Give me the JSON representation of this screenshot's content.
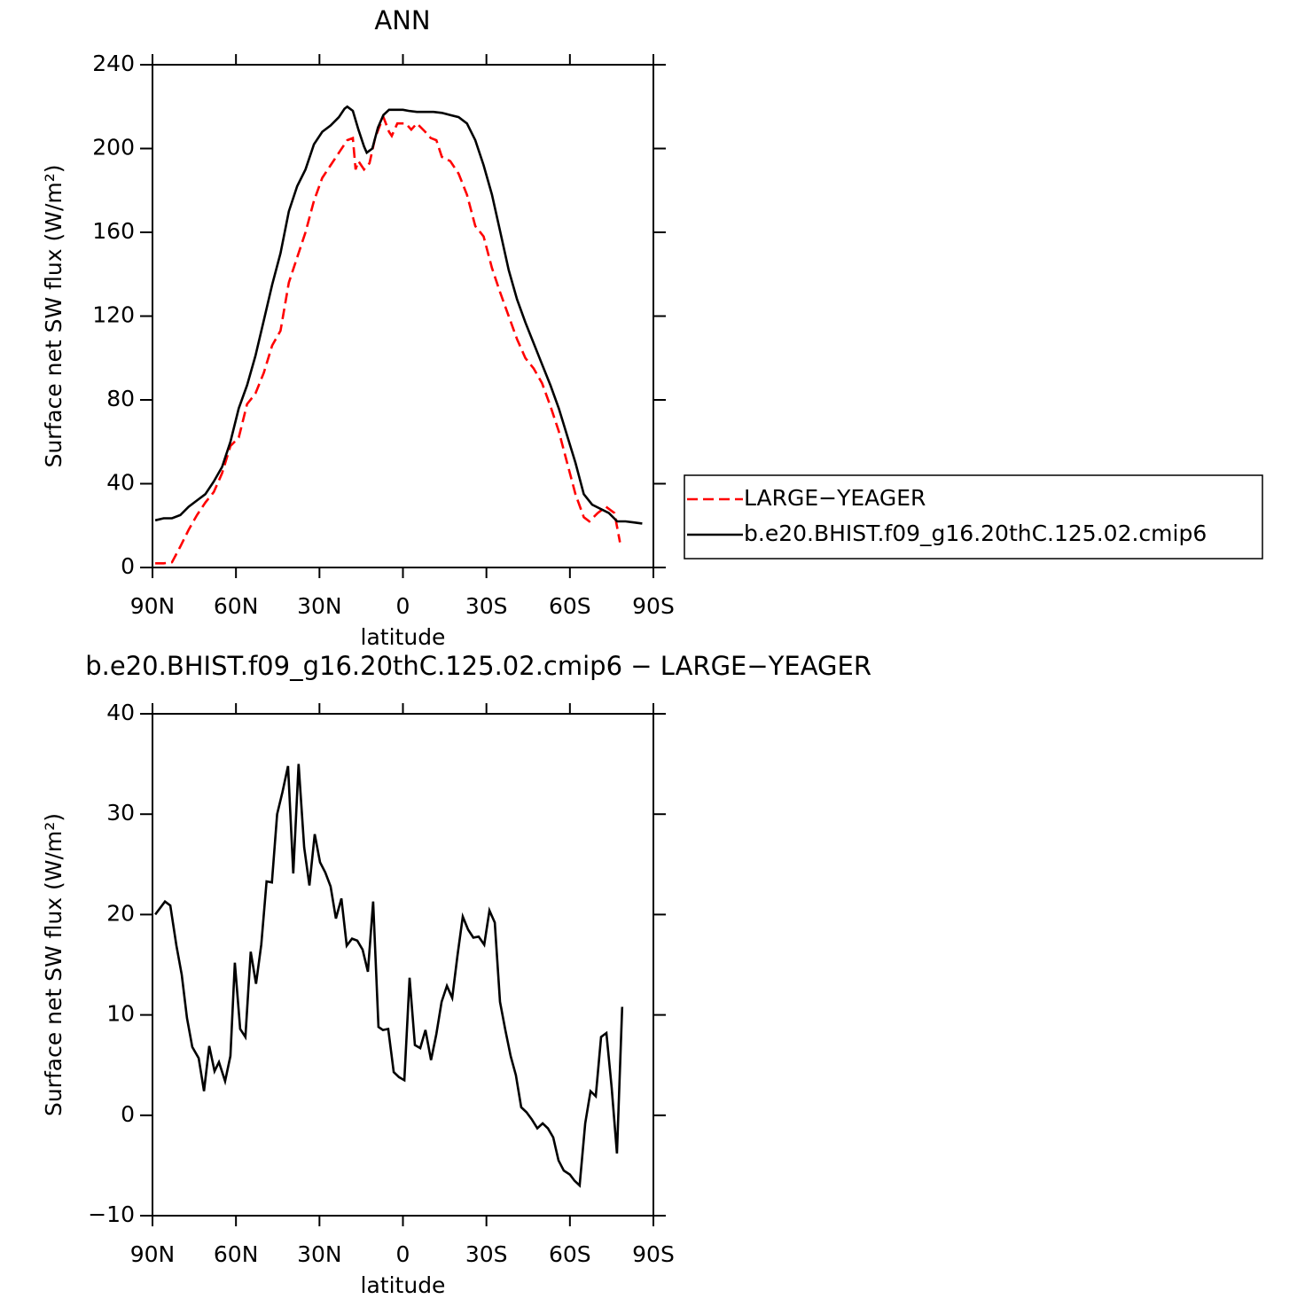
{
  "chart_data": [
    {
      "type": "line",
      "title": "ANN",
      "xlabel": "latitude",
      "ylabel": "Surface net SW flux (W/m²)",
      "xlim": [
        90,
        -90
      ],
      "xticks": [
        {
          "value": 90,
          "label": "90N"
        },
        {
          "value": 60,
          "label": "60N"
        },
        {
          "value": 30,
          "label": "30N"
        },
        0,
        {
          "value": -30,
          "label": "30S"
        },
        {
          "value": -60,
          "label": "60S"
        },
        {
          "value": -90,
          "label": "90S"
        }
      ],
      "ylim": [
        0,
        240
      ],
      "yticks": [
        0,
        40,
        80,
        120,
        160,
        200,
        240
      ],
      "legend_position": "right",
      "series": [
        {
          "name": "LARGE−YEAGER",
          "color": "#ff0000",
          "line_style": "dashed",
          "x": [
            89,
            86,
            83,
            80,
            77,
            74,
            71,
            68,
            65,
            62,
            59,
            56,
            53,
            50,
            47,
            44,
            41,
            38,
            35,
            32,
            29,
            26,
            23,
            20,
            18,
            17,
            16,
            14,
            12,
            10,
            8,
            7,
            5,
            4,
            2,
            -1,
            -3,
            -5,
            -8,
            -10,
            -12,
            -14,
            -17,
            -20,
            -23,
            -26,
            -29,
            -32,
            -35,
            -38,
            -41,
            -44,
            -47,
            -50,
            -53,
            -56,
            -59,
            -62,
            -65,
            -67,
            -70,
            -73,
            -76,
            -78
          ],
          "values": [
            2,
            2,
            2.5,
            10,
            18,
            25,
            31,
            36,
            45,
            58,
            62,
            78,
            83,
            93,
            106,
            113,
            136,
            148,
            160,
            175,
            186,
            192,
            198,
            204,
            205,
            190,
            194,
            190,
            193,
            205,
            212,
            215,
            208,
            206,
            212,
            212,
            209,
            212,
            208,
            205,
            204,
            196,
            194,
            188,
            178,
            163,
            158,
            143,
            131,
            120,
            109,
            100,
            95,
            88,
            77,
            65,
            50,
            35,
            24,
            22,
            26,
            29,
            26,
            12
          ]
        },
        {
          "name": "b.e20.BHIST.f09_g16.20thC.125.02.cmip6",
          "color": "#000000",
          "line_style": "solid",
          "x": [
            89,
            86,
            83,
            80,
            77,
            74,
            71,
            68,
            65,
            62,
            59,
            56,
            53,
            50,
            47,
            44,
            41,
            38,
            35,
            32,
            29,
            26,
            23,
            21,
            20,
            18,
            16,
            14,
            13,
            11,
            9,
            7,
            5,
            2,
            0,
            -2,
            -5,
            -8,
            -11,
            -14,
            -17,
            -20,
            -23,
            -26,
            -29,
            -32,
            -35,
            -38,
            -41,
            -44,
            -47,
            -50,
            -53,
            -56,
            -59,
            -62,
            -65,
            -68,
            -71,
            -74,
            -77,
            -80,
            -83,
            -86
          ],
          "values": [
            22.5,
            23.5,
            23.5,
            25,
            29,
            32,
            35,
            41,
            48,
            60,
            76,
            87,
            101,
            118,
            135,
            150,
            170,
            182,
            190,
            202,
            208,
            211,
            215,
            219,
            220,
            218,
            209,
            201,
            198,
            200,
            210,
            216,
            218.5,
            218.5,
            218.5,
            218,
            217.5,
            217.5,
            217.5,
            217,
            216,
            215,
            212,
            204,
            192,
            178,
            160,
            142,
            128,
            117,
            107,
            97,
            87,
            76,
            63,
            50,
            35,
            30,
            28,
            26,
            22,
            22,
            21.5,
            21
          ]
        }
      ]
    },
    {
      "type": "line",
      "title": "b.e20.BHIST.f09_g16.20thC.125.02.cmip6 − LARGE−YEAGER",
      "xlabel": "latitude",
      "ylabel": "Surface net SW flux (W/m²)",
      "xlim": [
        90,
        -90
      ],
      "xticks": [
        {
          "value": 90,
          "label": "90N"
        },
        {
          "value": 60,
          "label": "60N"
        },
        {
          "value": 30,
          "label": "30N"
        },
        0,
        {
          "value": -30,
          "label": "30S"
        },
        {
          "value": -60,
          "label": "60S"
        },
        {
          "value": -90,
          "label": "90S"
        }
      ],
      "ylim": [
        -10,
        40
      ],
      "yticks": [
        {
          "value": -10,
          "label": "−10"
        },
        0,
        10,
        20,
        30,
        40
      ],
      "color": "#000000",
      "x": [
        89,
        85.5,
        83.6,
        81.4,
        79.5,
        77.6,
        75.7,
        73.4,
        71.5,
        69.6,
        67.7,
        66.1,
        63.9,
        62,
        60.4,
        58.5,
        56.6,
        54.7,
        52.8,
        50.9,
        49,
        47.1,
        45.2,
        43.3,
        41.3,
        39.4,
        37.5,
        35.5,
        33.6,
        31.7,
        29.8,
        27.9,
        26,
        24.1,
        22.1,
        20.2,
        18.3,
        16.4,
        14.5,
        12.6,
        10.7,
        8.8,
        7.2,
        5.3,
        3.3,
        1.4,
        -0.5,
        -2.4,
        -4.3,
        -6.2,
        -8.1,
        -10.1,
        -12,
        -13.9,
        -15.8,
        -17.7,
        -19.6,
        -21.5,
        -23.4,
        -25.3,
        -27.2,
        -29.2,
        -31.1,
        -33,
        -34.9,
        -36.8,
        -38.7,
        -40.6,
        -42.5,
        -44.4,
        -46.3,
        -48.3,
        -50.2,
        -52.1,
        -54,
        -55.9,
        -57.8,
        -60,
        -61.6,
        -63.5,
        -65.5,
        -67.4,
        -69.3,
        -71.2,
        -73.1,
        -75,
        -76.9,
        -78.8
      ],
      "values": [
        20.0,
        21.3,
        20.9,
        16.9,
        14,
        9.7,
        6.8,
        5.7,
        2.4,
        6.9,
        4.4,
        5.3,
        3.4,
        5.9,
        15.2,
        8.6,
        7.8,
        16.3,
        13.1,
        17,
        23.3,
        23.2,
        30,
        32.2,
        34.8,
        24.1,
        35,
        26.7,
        22.9,
        28,
        25.2,
        24.2,
        22.8,
        19.6,
        21.6,
        16.9,
        17.6,
        17.4,
        16.5,
        14.3,
        21.3,
        8.8,
        8.5,
        8.6,
        4.3,
        3.8,
        3.5,
        13.7,
        7,
        6.7,
        8.5,
        5.5,
        8.1,
        11.3,
        12.9,
        11.7,
        15.9,
        19.8,
        18.5,
        17.7,
        17.8,
        17,
        20.4,
        19.2,
        11.3,
        8.5,
        5.9,
        4.0,
        0.8,
        0.3,
        -0.4,
        -1.3,
        -0.8,
        -1.3,
        -2.2,
        -4.5,
        -5.5,
        -5.9,
        -6.5,
        -7,
        -0.8,
        2.4,
        1.9,
        7.8,
        8.2,
        2.8,
        -3.8,
        10.8
      ]
    }
  ]
}
